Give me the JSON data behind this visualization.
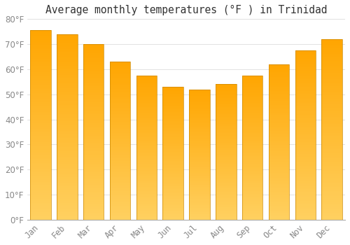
{
  "title": "Average monthly temperatures (°F ) in Trinidad",
  "months": [
    "Jan",
    "Feb",
    "Mar",
    "Apr",
    "May",
    "Jun",
    "Jul",
    "Aug",
    "Sep",
    "Oct",
    "Nov",
    "Dec"
  ],
  "values": [
    75.5,
    74.0,
    70.0,
    63.0,
    57.5,
    53.0,
    52.0,
    54.0,
    57.5,
    62.0,
    67.5,
    72.0
  ],
  "bar_color_top": "#FFA500",
  "bar_color_bottom": "#FFD060",
  "bar_edge_color": "#CC8800",
  "background_color": "#FFFFFF",
  "grid_color": "#DDDDDD",
  "ylim": [
    0,
    80
  ],
  "ytick_step": 10,
  "title_fontsize": 10.5,
  "tick_fontsize": 8.5,
  "tick_color": "#888888",
  "spine_color": "#AAAAAA",
  "bar_width": 0.78
}
